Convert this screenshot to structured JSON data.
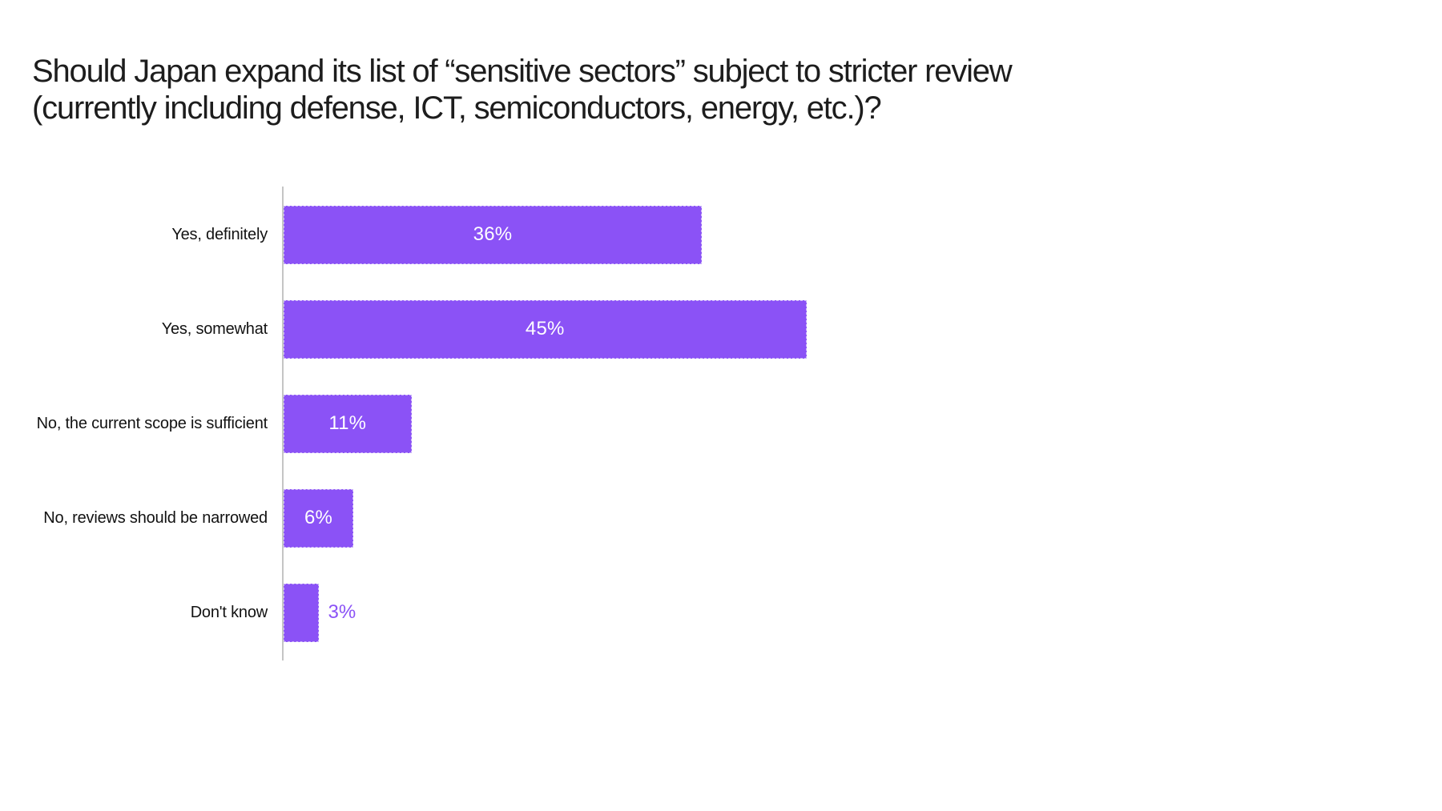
{
  "page": {
    "background": "#FFFFFF"
  },
  "header": {
    "title_lines": [
      "Should Japan expand its list of “sensitive sectors” subject to stricter review",
      "(currently including defense, ICT, semiconductors, energy, etc.)?"
    ]
  },
  "chart_data": {
    "type": "bar",
    "orientation": "horizontal",
    "title": "Should Japan expand its list of “sensitive sectors” subject to stricter review (currently including defense, ICT, semiconductors, energy, etc.)?",
    "categories": [
      "Yes, definitely",
      "Yes, somewhat",
      "No, the current scope is sufficient",
      "No, reviews should be narrowed",
      "Don't know"
    ],
    "values": [
      36,
      45,
      11,
      6,
      3
    ],
    "value_labels": [
      "36%",
      "45%",
      "11%",
      "6%",
      "3%"
    ],
    "unit": "%",
    "label_placement": [
      "inside",
      "inside",
      "inside",
      "inside",
      "outside"
    ],
    "xlabel": "",
    "ylabel": "",
    "legend": false,
    "grid": false,
    "bar_color": "#8B52F6",
    "value_label_color_inside": "#FFFFFF",
    "value_label_color_outside": "#8B52F6",
    "axis_line_color": "#C5C5C5",
    "category_label_color": "#121212",
    "title_color": "#1D1D1D"
  }
}
